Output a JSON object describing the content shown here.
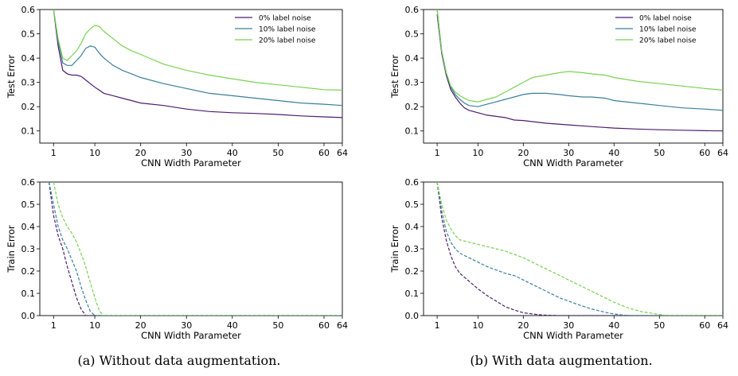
{
  "colors": {
    "noise0": "#4b1e6e",
    "noise10": "#3a7f9a",
    "noise20": "#7ad151"
  },
  "captions": [
    "(a) Without data augmentation.",
    "(b) With data augmentation."
  ],
  "chart_data": [
    {
      "id": "a-test",
      "type": "line",
      "xlabel": "CNN Width Parameter",
      "ylabel": "Test Error",
      "xlim": [
        -2,
        64
      ],
      "ylim": [
        0.05,
        0.6
      ],
      "line_style": "solid",
      "legend": "top-right",
      "xticks": [
        "1",
        "10",
        "20",
        "30",
        "40",
        "50",
        "60",
        "64"
      ],
      "yticks": [
        "0.1",
        "0.2",
        "0.3",
        "0.4",
        "0.5",
        "0.6"
      ],
      "series": [
        {
          "name": "0% label noise",
          "x": [
            1,
            2,
            3,
            4,
            5,
            6,
            7,
            8,
            10,
            12,
            14,
            16,
            18,
            20,
            25,
            30,
            35,
            40,
            45,
            50,
            55,
            60,
            64
          ],
          "values": [
            0.6,
            0.45,
            0.35,
            0.335,
            0.33,
            0.33,
            0.325,
            0.31,
            0.28,
            0.255,
            0.245,
            0.235,
            0.225,
            0.215,
            0.205,
            0.19,
            0.18,
            0.175,
            0.172,
            0.168,
            0.162,
            0.158,
            0.155
          ]
        },
        {
          "name": "10% label noise",
          "x": [
            1,
            2,
            3,
            4,
            5,
            6,
            7,
            8,
            9,
            10,
            11,
            12,
            14,
            16,
            18,
            20,
            25,
            30,
            35,
            40,
            45,
            50,
            55,
            60,
            64
          ],
          "values": [
            0.6,
            0.47,
            0.38,
            0.37,
            0.37,
            0.39,
            0.41,
            0.44,
            0.45,
            0.445,
            0.42,
            0.4,
            0.37,
            0.35,
            0.335,
            0.32,
            0.295,
            0.275,
            0.255,
            0.245,
            0.235,
            0.225,
            0.215,
            0.21,
            0.205
          ]
        },
        {
          "name": "20% label noise",
          "x": [
            1,
            2,
            3,
            4,
            5,
            6,
            7,
            8,
            9,
            10,
            11,
            12,
            14,
            16,
            18,
            20,
            25,
            30,
            35,
            40,
            45,
            50,
            55,
            60,
            64
          ],
          "values": [
            0.6,
            0.48,
            0.4,
            0.39,
            0.41,
            0.43,
            0.46,
            0.5,
            0.52,
            0.535,
            0.53,
            0.51,
            0.48,
            0.45,
            0.43,
            0.415,
            0.375,
            0.35,
            0.33,
            0.315,
            0.3,
            0.29,
            0.28,
            0.27,
            0.268
          ]
        }
      ]
    },
    {
      "id": "b-test",
      "type": "line",
      "xlabel": "CNN Width Parameter",
      "ylabel": "Test Error",
      "xlim": [
        -2,
        64
      ],
      "ylim": [
        0.05,
        0.6
      ],
      "line_style": "solid",
      "legend": "top-right",
      "xticks": [
        "1",
        "10",
        "20",
        "30",
        "40",
        "50",
        "60",
        "64"
      ],
      "yticks": [
        "0.1",
        "0.2",
        "0.3",
        "0.4",
        "0.5",
        "0.6"
      ],
      "series": [
        {
          "name": "0% label noise",
          "x": [
            1,
            2,
            3,
            4,
            5,
            6,
            7,
            8,
            10,
            12,
            14,
            16,
            18,
            20,
            25,
            30,
            35,
            40,
            45,
            50,
            55,
            60,
            64
          ],
          "values": [
            0.58,
            0.42,
            0.33,
            0.27,
            0.24,
            0.215,
            0.195,
            0.185,
            0.175,
            0.165,
            0.16,
            0.155,
            0.145,
            0.143,
            0.132,
            0.125,
            0.118,
            0.112,
            0.108,
            0.105,
            0.103,
            0.101,
            0.1
          ]
        },
        {
          "name": "10% label noise",
          "x": [
            1,
            2,
            3,
            4,
            5,
            6,
            7,
            8,
            10,
            12,
            14,
            16,
            18,
            20,
            22,
            25,
            28,
            30,
            33,
            35,
            38,
            40,
            45,
            50,
            55,
            60,
            64
          ],
          "values": [
            0.6,
            0.43,
            0.34,
            0.28,
            0.25,
            0.23,
            0.215,
            0.205,
            0.2,
            0.21,
            0.22,
            0.23,
            0.24,
            0.25,
            0.255,
            0.255,
            0.25,
            0.245,
            0.24,
            0.24,
            0.235,
            0.225,
            0.215,
            0.205,
            0.195,
            0.19,
            0.185
          ]
        },
        {
          "name": "20% label noise",
          "x": [
            1,
            2,
            3,
            4,
            5,
            6,
            7,
            8,
            10,
            12,
            14,
            16,
            18,
            20,
            22,
            25,
            28,
            30,
            33,
            35,
            38,
            40,
            45,
            50,
            55,
            60,
            64
          ],
          "values": [
            0.6,
            0.43,
            0.34,
            0.285,
            0.26,
            0.245,
            0.235,
            0.225,
            0.22,
            0.23,
            0.24,
            0.26,
            0.28,
            0.3,
            0.32,
            0.33,
            0.34,
            0.345,
            0.34,
            0.335,
            0.33,
            0.32,
            0.305,
            0.295,
            0.285,
            0.275,
            0.268
          ]
        }
      ]
    },
    {
      "id": "a-train",
      "type": "line",
      "xlabel": "CNN Width Parameter",
      "ylabel": "Train Error",
      "xlim": [
        -2,
        64
      ],
      "ylim": [
        0,
        0.6
      ],
      "line_style": "dashed",
      "legend": "none",
      "xticks": [
        "1",
        "10",
        "20",
        "30",
        "40",
        "50",
        "60",
        "64"
      ],
      "yticks": [
        "0.0",
        "0.1",
        "0.2",
        "0.3",
        "0.4",
        "0.5",
        "0.6"
      ],
      "series": [
        {
          "name": "0% label noise",
          "x": [
            0,
            1,
            2,
            3,
            4,
            5,
            6,
            7,
            8,
            9,
            10,
            64
          ],
          "values": [
            0.6,
            0.45,
            0.36,
            0.3,
            0.22,
            0.15,
            0.08,
            0.03,
            0.0,
            0.0,
            0.0,
            0.0
          ]
        },
        {
          "name": "10% label noise",
          "x": [
            0,
            1,
            2,
            3,
            4,
            5,
            6,
            7,
            8,
            9,
            10,
            11,
            64
          ],
          "values": [
            0.6,
            0.5,
            0.4,
            0.34,
            0.3,
            0.25,
            0.2,
            0.13,
            0.07,
            0.02,
            0.0,
            0.0,
            0.0
          ]
        },
        {
          "name": "20% label noise",
          "x": [
            1,
            2,
            3,
            4,
            5,
            6,
            7,
            8,
            9,
            10,
            11,
            12,
            64
          ],
          "values": [
            0.6,
            0.5,
            0.44,
            0.4,
            0.37,
            0.33,
            0.28,
            0.22,
            0.15,
            0.08,
            0.02,
            0.0,
            0.0
          ]
        }
      ]
    },
    {
      "id": "b-train",
      "type": "line",
      "xlabel": "CNN Width Parameter",
      "ylabel": "Train Error",
      "xlim": [
        -2,
        64
      ],
      "ylim": [
        0,
        0.6
      ],
      "line_style": "dashed",
      "legend": "none",
      "xticks": [
        "1",
        "10",
        "20",
        "30",
        "40",
        "50",
        "60",
        "64"
      ],
      "yticks": [
        "0.0",
        "0.1",
        "0.2",
        "0.3",
        "0.4",
        "0.5",
        "0.6"
      ],
      "series": [
        {
          "name": "0% label noise",
          "x": [
            1,
            2,
            3,
            4,
            5,
            6,
            8,
            10,
            12,
            14,
            16,
            18,
            20,
            22,
            24,
            26,
            28,
            30,
            64
          ],
          "values": [
            0.6,
            0.44,
            0.34,
            0.27,
            0.22,
            0.19,
            0.155,
            0.12,
            0.09,
            0.065,
            0.04,
            0.025,
            0.013,
            0.007,
            0.003,
            0.001,
            0.0,
            0.0,
            0.0
          ]
        },
        {
          "name": "10% label noise",
          "x": [
            1,
            2,
            3,
            4,
            5,
            6,
            8,
            10,
            12,
            14,
            16,
            18,
            20,
            22,
            24,
            26,
            28,
            30,
            32,
            35,
            38,
            40,
            42,
            44,
            64
          ],
          "values": [
            0.6,
            0.47,
            0.38,
            0.33,
            0.3,
            0.28,
            0.26,
            0.24,
            0.22,
            0.205,
            0.19,
            0.18,
            0.16,
            0.14,
            0.12,
            0.1,
            0.08,
            0.065,
            0.05,
            0.03,
            0.015,
            0.007,
            0.002,
            0.0,
            0.0
          ]
        },
        {
          "name": "20% label noise",
          "x": [
            1,
            2,
            3,
            4,
            5,
            6,
            8,
            10,
            12,
            14,
            16,
            18,
            20,
            22,
            24,
            26,
            28,
            30,
            32,
            35,
            38,
            40,
            43,
            46,
            50,
            52,
            64
          ],
          "values": [
            0.6,
            0.5,
            0.43,
            0.39,
            0.36,
            0.34,
            0.33,
            0.32,
            0.31,
            0.3,
            0.29,
            0.275,
            0.26,
            0.24,
            0.22,
            0.2,
            0.18,
            0.16,
            0.14,
            0.11,
            0.08,
            0.06,
            0.035,
            0.018,
            0.005,
            0.0,
            0.0
          ]
        }
      ]
    }
  ]
}
